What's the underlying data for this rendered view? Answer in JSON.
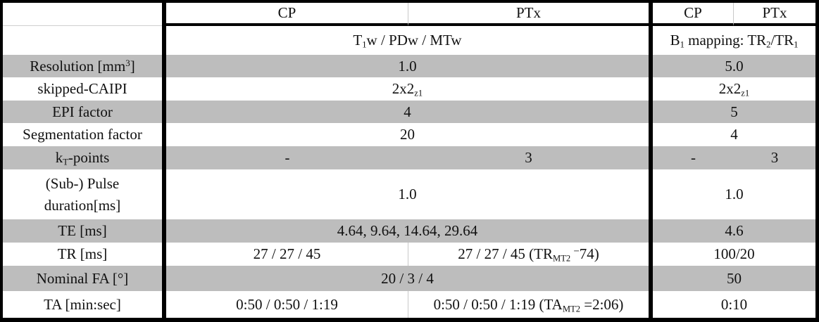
{
  "header": {
    "cp_left": "CP",
    "ptx_left": "PTx",
    "cp_right": "CP",
    "ptx_right": "PTx"
  },
  "subheader": {
    "left_pre": "T",
    "left_sub": "1",
    "left_post": "w / PDw / MTw",
    "right_b": "B",
    "right_b_sub": "1",
    "right_mid": " mapping: TR",
    "right_sub2": "2",
    "right_slash": "/TR",
    "right_sub1": "1"
  },
  "rows": {
    "resolution": {
      "label_pre": "Resolution [mm",
      "label_sup": "3",
      "label_post": "]",
      "left": "1.0",
      "right": "5.0"
    },
    "caipi": {
      "label": "skipped-CAIPI",
      "left_pre": "2x2",
      "left_sub": "z1",
      "right_pre": "2x2",
      "right_sub": "z1"
    },
    "epi": {
      "label": "EPI factor",
      "left": "4",
      "right": "5"
    },
    "segmentation": {
      "label": "Segmentation factor",
      "left": "20",
      "right": "4"
    },
    "kt_points": {
      "label_pre": "k",
      "label_sub": "T",
      "label_post": "-points",
      "cp_left": "-",
      "ptx_left": "3",
      "cp_right": "-",
      "ptx_right": "3"
    },
    "pulse": {
      "label_line1": "(Sub-) Pulse",
      "label_line2": "duration[ms]",
      "left": "1.0",
      "right": "1.0"
    },
    "te": {
      "label": "TE [ms]",
      "left": "4.64, 9.64, 14.64, 29.64",
      "right": "4.6"
    },
    "tr": {
      "label": "TR [ms]",
      "cp": "27 / 27 / 45",
      "ptx_pre": "27 / 27 / 45 (TR",
      "ptx_sub": "MT2",
      "ptx_sup_minus": "−",
      "ptx_post": "74)",
      "right": "100/20"
    },
    "fa": {
      "label": "Nominal FA [°]",
      "left": "20 / 3 / 4",
      "right": "50"
    },
    "ta": {
      "label": "TA [min:sec]",
      "cp": "0:50 / 0:50 / 1:19",
      "ptx_pre": "0:50 / 0:50 / 1:19 (TA",
      "ptx_sub": "MT2",
      "ptx_post": " =2:06)",
      "right": "0:10"
    }
  },
  "colors": {
    "row_shade": "#bdbdbd",
    "rule": "#000000",
    "faint_divider": "#c9c9c9"
  }
}
